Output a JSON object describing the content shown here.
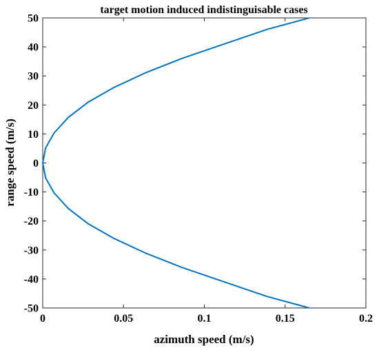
{
  "chart_data": {
    "type": "line",
    "title": "target motion induced indistinguisable cases",
    "xlabel": "azimuth speed (m/s)",
    "ylabel": "range speed (m/s)",
    "xlim": [
      0,
      0.2
    ],
    "ylim": [
      -50,
      50
    ],
    "xticks": [
      0,
      0.05,
      0.1,
      0.15,
      0.2
    ],
    "xtick_labels": [
      "0",
      "0.05",
      "0.1",
      "0.15",
      "0.2"
    ],
    "yticks": [
      -50,
      -40,
      -30,
      -20,
      -10,
      0,
      10,
      20,
      30,
      40,
      50
    ],
    "ytick_labels": [
      "-50",
      "-40",
      "-30",
      "-20",
      "-10",
      "0",
      "10",
      "20",
      "30",
      "40",
      "50"
    ],
    "grid": false,
    "line_color": "#0072BD",
    "series": [
      {
        "x": [
          0.165,
          0.1386,
          0.1122,
          0.086,
          0.0633,
          0.044,
          0.0282,
          0.0158,
          0.007,
          0.0018,
          0.0,
          0.0018,
          0.007,
          0.0158,
          0.0282,
          0.044,
          0.0633,
          0.086,
          0.1122,
          0.1386,
          0.165
        ],
        "y": [
          -50,
          -46,
          -41,
          -36,
          -31,
          -26,
          -21,
          -15.7,
          -10.3,
          -5.2,
          0,
          5.2,
          10.3,
          15.7,
          21,
          26,
          31,
          36,
          41,
          46,
          50
        ]
      }
    ]
  }
}
